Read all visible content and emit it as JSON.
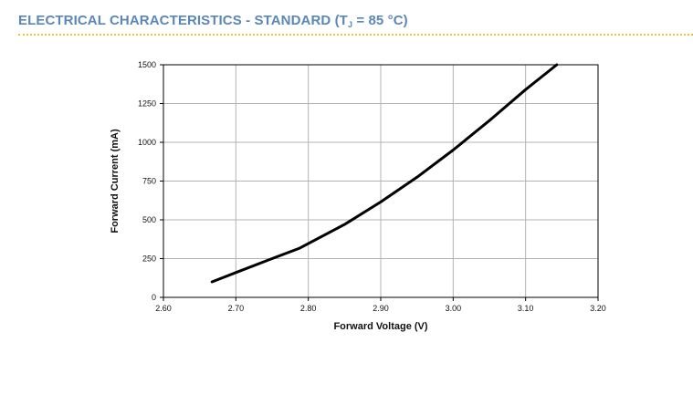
{
  "header": {
    "title_prefix": "ELECTRICAL CHARACTERISTICS - STANDARD (T",
    "title_sub": "J",
    "title_suffix": " = 85 °C)"
  },
  "colors": {
    "title": "#5b87b8",
    "rule": "#f3c42a",
    "grid": "#b3b3b3",
    "line": "#000000"
  },
  "chart_data": {
    "type": "line",
    "title": "",
    "xlabel": "Forward Voltage (V)",
    "ylabel": "Forward Current (mA)",
    "xlim": [
      2.6,
      3.2
    ],
    "ylim": [
      0,
      1500
    ],
    "xticks": [
      "2.60",
      "2.70",
      "2.80",
      "2.90",
      "3.00",
      "3.10",
      "3.20"
    ],
    "yticks": [
      "0",
      "250",
      "500",
      "750",
      "1000",
      "1250",
      "1500"
    ],
    "grid": true,
    "series": [
      {
        "x": [
          2.667,
          2.7,
          2.75,
          2.787,
          2.85,
          2.9,
          2.95,
          3.0,
          3.05,
          3.1,
          3.143
        ],
        "y": [
          100,
          160,
          250,
          315,
          470,
          615,
          775,
          950,
          1140,
          1340,
          1500
        ]
      }
    ]
  }
}
